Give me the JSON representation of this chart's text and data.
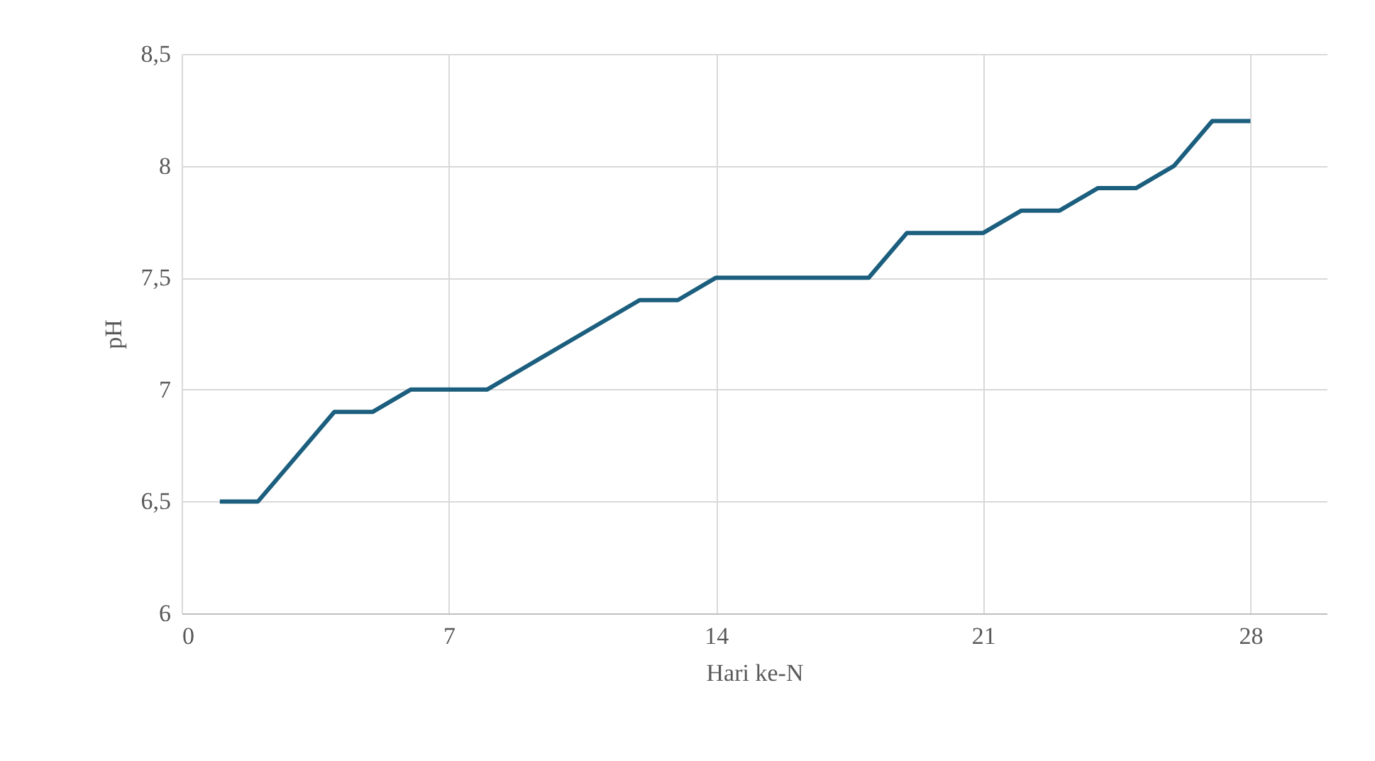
{
  "chart_data": {
    "type": "line",
    "xlabel": "Hari ke-N",
    "ylabel": "pH",
    "x": [
      1,
      2,
      3,
      4,
      5,
      6,
      7,
      8,
      9,
      10,
      11,
      12,
      13,
      14,
      15,
      16,
      17,
      18,
      19,
      20,
      21,
      22,
      23,
      24,
      25,
      26,
      27,
      28
    ],
    "series": [
      {
        "color": "#1b5e7e",
        "values": [
          6.5,
          6.5,
          6.7,
          6.9,
          6.9,
          7.0,
          7.0,
          7.0,
          7.1,
          7.2,
          7.3,
          7.4,
          7.4,
          7.5,
          7.5,
          7.5,
          7.5,
          7.5,
          7.7,
          7.7,
          7.7,
          7.8,
          7.8,
          7.9,
          7.9,
          8.0,
          8.2,
          8.2
        ]
      }
    ],
    "xlim": [
      0,
      30
    ],
    "xticks": [
      0,
      7,
      14,
      21,
      28
    ],
    "ylim": [
      6,
      8.5
    ],
    "yticks": [
      6,
      {
        "value": 6.5,
        "label": "6,5"
      },
      7,
      {
        "value": 7.5,
        "label": "7,5"
      },
      8,
      {
        "value": 8.5,
        "label": "8,5"
      }
    ],
    "grid": true,
    "marker": "none",
    "line_style": "solid"
  }
}
